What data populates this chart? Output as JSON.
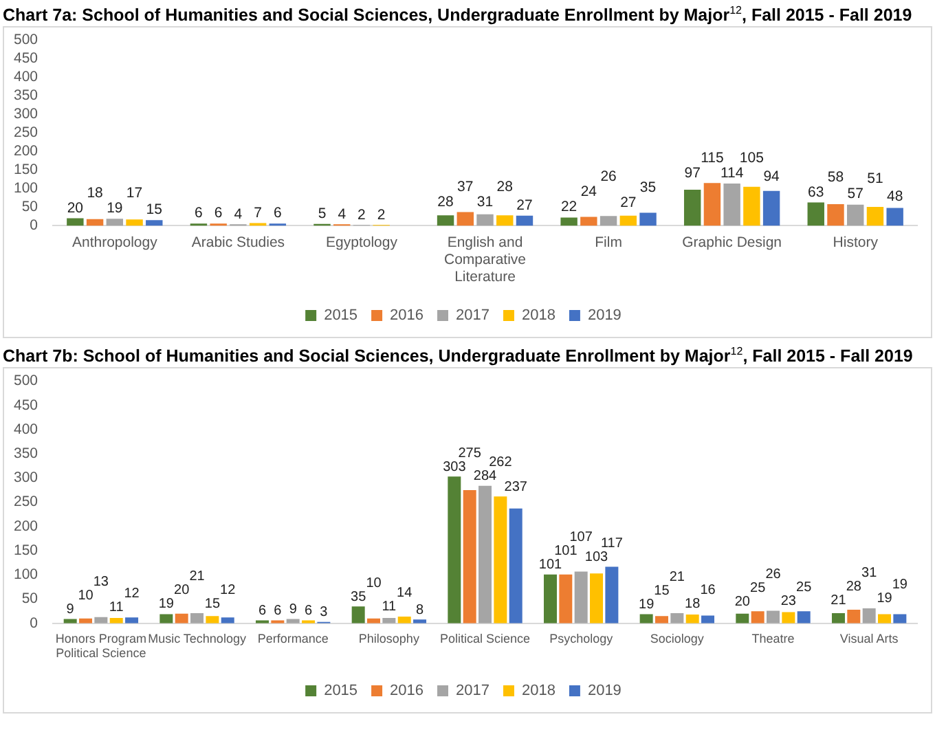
{
  "chart_data": [
    {
      "type": "bar",
      "title": "Chart 7a: School of Humanities and Social Sciences, Undergraduate Enrollment by Major$^{12}$, Fall 2015 - Fall 2019",
      "categories": [
        "Anthropology",
        "Arabic Studies",
        "Egyptology",
        "English and Comparative Literature",
        "Film",
        "Graphic Design",
        "History"
      ],
      "series": [
        {
          "name": "2015",
          "color": "#548235",
          "values": [
            20,
            6,
            5,
            28,
            22,
            97,
            63
          ]
        },
        {
          "name": "2016",
          "color": "#ed7d31",
          "values": [
            18,
            6,
            4,
            37,
            24,
            115,
            58
          ]
        },
        {
          "name": "2017",
          "color": "#a5a5a5",
          "values": [
            19,
            4,
            2,
            31,
            26,
            114,
            57
          ]
        },
        {
          "name": "2018",
          "color": "#ffc000",
          "values": [
            17,
            7,
            2,
            28,
            27,
            105,
            51
          ]
        },
        {
          "name": "2019",
          "color": "#4472c4",
          "values": [
            15,
            6,
            null,
            27,
            35,
            94,
            48
          ]
        }
      ],
      "ylim": [
        0,
        500
      ],
      "yticks": [
        0,
        50,
        100,
        150,
        200,
        250,
        300,
        350,
        400,
        450,
        500
      ],
      "grid": false,
      "legend": "bottom",
      "data_labels": true
    },
    {
      "type": "bar",
      "title": "Chart 7b: School of Humanities and Social Sciences, Undergraduate Enrollment by Major$^{12}$, Fall 2015 - Fall 2019",
      "categories": [
        "Honors Program Political Science",
        "Music Technology",
        "Performance",
        "Philosophy",
        "Political Science",
        "Psychology",
        "Sociology",
        "Theatre",
        "Visual Arts"
      ],
      "series": [
        {
          "name": "2015",
          "color": "#548235",
          "values": [
            9,
            19,
            6,
            35,
            303,
            101,
            19,
            20,
            21
          ]
        },
        {
          "name": "2016",
          "color": "#ed7d31",
          "values": [
            10,
            20,
            6,
            10,
            275,
            101,
            15,
            25,
            28
          ]
        },
        {
          "name": "2017",
          "color": "#a5a5a5",
          "values": [
            13,
            21,
            9,
            11,
            284,
            107,
            21,
            26,
            31
          ]
        },
        {
          "name": "2018",
          "color": "#ffc000",
          "values": [
            11,
            15,
            6,
            14,
            262,
            103,
            18,
            23,
            19
          ]
        },
        {
          "name": "2019",
          "color": "#4472c4",
          "values": [
            12,
            12,
            3,
            8,
            237,
            117,
            16,
            25,
            19
          ]
        }
      ],
      "ylim": [
        0,
        500
      ],
      "yticks": [
        0,
        50,
        100,
        150,
        200,
        250,
        300,
        350,
        400,
        450,
        500
      ],
      "grid": false,
      "legend": "bottom",
      "data_labels": true
    }
  ]
}
